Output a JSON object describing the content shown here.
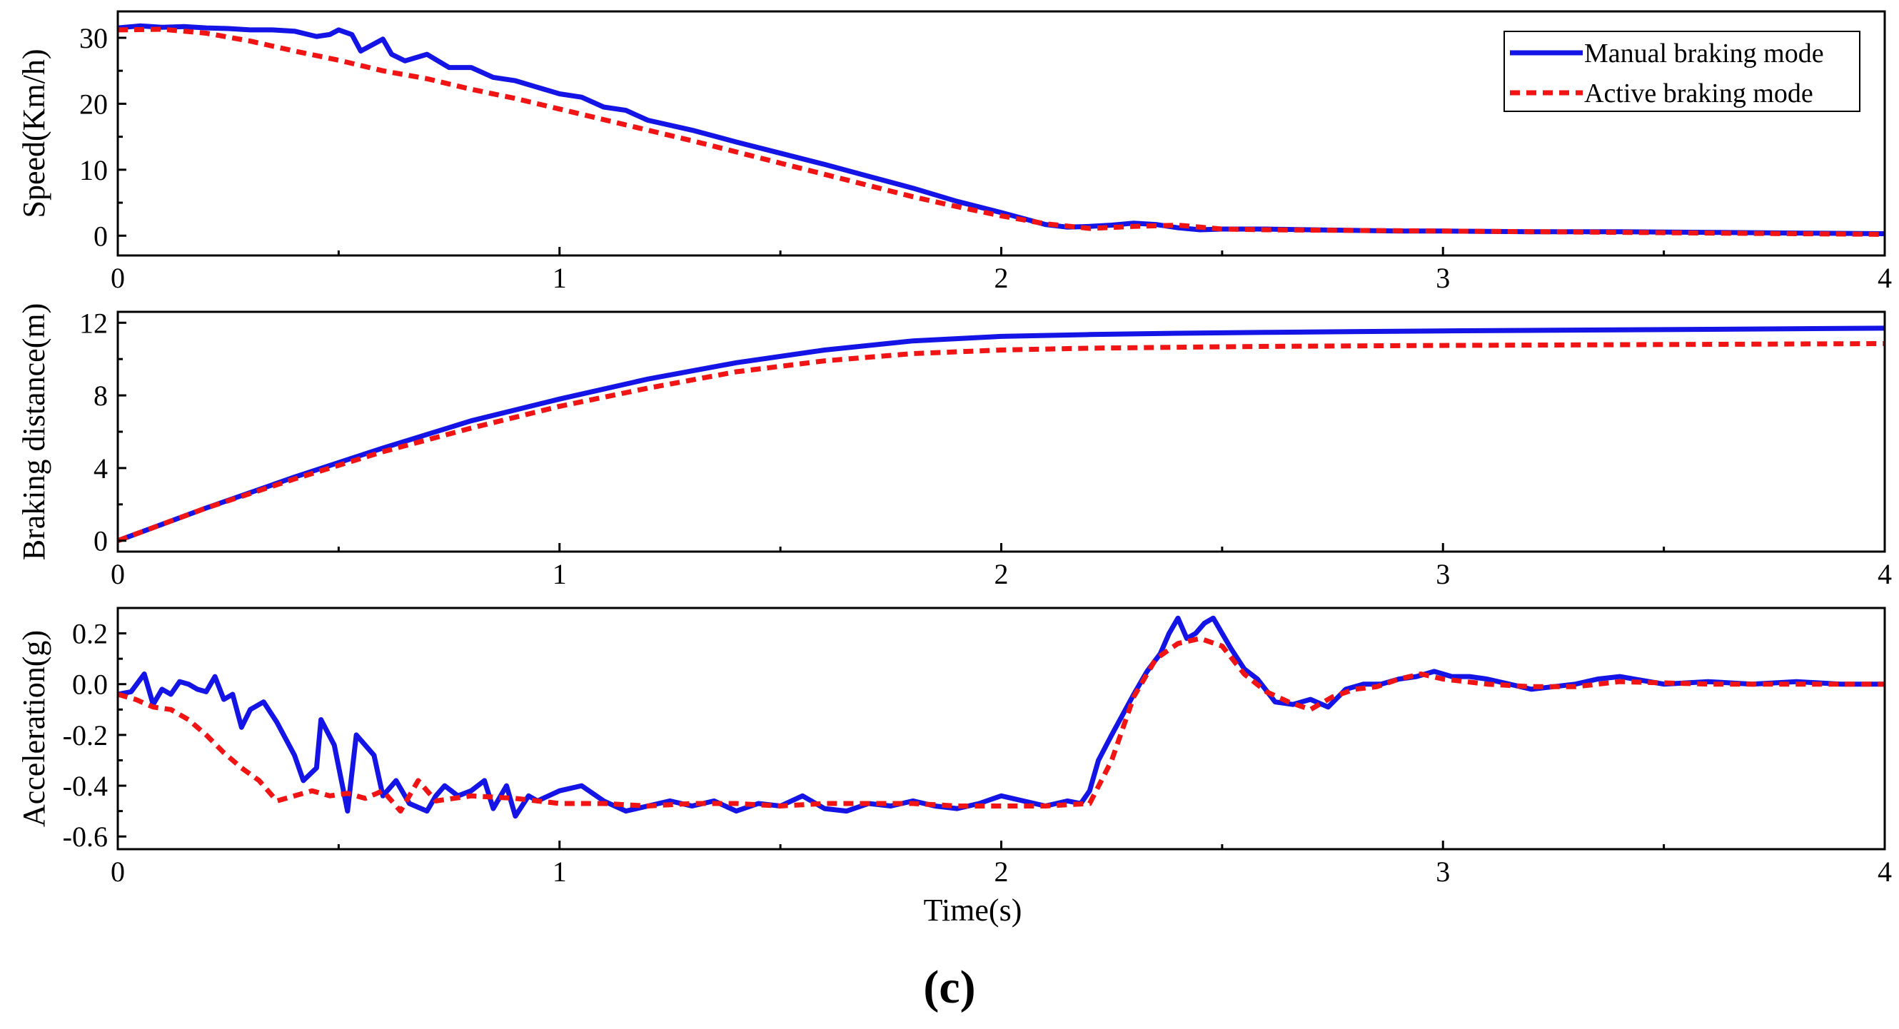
{
  "chart_data": [
    {
      "type": "line",
      "panel": "speed",
      "ylabel": "Speed(Km/h)",
      "xlabel": "",
      "xlim": [
        0,
        4
      ],
      "ylim": [
        -3,
        34
      ],
      "xticks": [
        0,
        1,
        2,
        3,
        4
      ],
      "xtick_labels": [
        "0",
        "1",
        "2",
        "3",
        "4"
      ],
      "yticks": [
        0,
        10,
        20,
        30
      ],
      "ytick_labels": [
        "0",
        "10",
        "20",
        "30"
      ],
      "legend": {
        "position": "top-right",
        "entries": [
          "Manual braking mode",
          "Active braking mode"
        ]
      },
      "series": [
        {
          "name": "Manual braking mode",
          "style": "solid",
          "x": [
            0,
            0.05,
            0.1,
            0.15,
            0.2,
            0.25,
            0.3,
            0.35,
            0.4,
            0.45,
            0.48,
            0.5,
            0.53,
            0.55,
            0.6,
            0.62,
            0.65,
            0.7,
            0.75,
            0.8,
            0.85,
            0.9,
            0.95,
            1.0,
            1.05,
            1.1,
            1.15,
            1.2,
            1.3,
            1.4,
            1.5,
            1.6,
            1.7,
            1.8,
            1.9,
            2.0,
            2.05,
            2.1,
            2.15,
            2.2,
            2.25,
            2.3,
            2.35,
            2.4,
            2.45,
            2.5,
            2.6,
            2.7,
            2.8,
            2.9,
            3.0,
            3.2,
            3.4,
            3.6,
            3.8,
            4.0
          ],
          "values": [
            31.5,
            31.8,
            31.6,
            31.7,
            31.5,
            31.4,
            31.2,
            31.2,
            31.0,
            30.2,
            30.5,
            31.2,
            30.5,
            28.0,
            29.8,
            27.5,
            26.5,
            27.5,
            25.5,
            25.5,
            24.0,
            23.5,
            22.5,
            21.5,
            21.0,
            19.5,
            19.0,
            17.5,
            16.0,
            14.2,
            12.5,
            10.8,
            9.0,
            7.2,
            5.2,
            3.5,
            2.6,
            1.7,
            1.3,
            1.4,
            1.6,
            1.9,
            1.7,
            1.2,
            0.9,
            1.0,
            1.0,
            0.9,
            0.8,
            0.7,
            0.7,
            0.6,
            0.6,
            0.5,
            0.4,
            0.3
          ]
        },
        {
          "name": "Active braking mode",
          "style": "dashed",
          "x": [
            0,
            0.1,
            0.2,
            0.3,
            0.4,
            0.5,
            0.6,
            0.7,
            0.8,
            0.9,
            1.0,
            1.1,
            1.2,
            1.3,
            1.4,
            1.5,
            1.6,
            1.7,
            1.8,
            1.9,
            2.0,
            2.1,
            2.2,
            2.3,
            2.4,
            2.5,
            2.6,
            2.8,
            3.0,
            3.2,
            3.4,
            3.6,
            3.8,
            4.0
          ],
          "values": [
            31.2,
            31.3,
            30.7,
            29.5,
            28.0,
            26.6,
            25.0,
            23.8,
            22.2,
            20.8,
            19.2,
            17.6,
            16.0,
            14.4,
            12.7,
            11.0,
            9.3,
            7.6,
            5.9,
            4.4,
            3.0,
            1.8,
            1.1,
            1.4,
            1.6,
            1.0,
            0.9,
            0.8,
            0.7,
            0.6,
            0.5,
            0.4,
            0.3,
            0.2
          ]
        }
      ]
    },
    {
      "type": "line",
      "panel": "distance",
      "ylabel": "Braking distance(m)",
      "xlabel": "",
      "xlim": [
        0,
        4
      ],
      "ylim": [
        -0.6,
        12.6
      ],
      "xticks": [
        0,
        1,
        2,
        3,
        4
      ],
      "xtick_labels": [
        "0",
        "1",
        "2",
        "3",
        "4"
      ],
      "yticks": [
        0,
        4,
        8,
        12
      ],
      "ytick_labels": [
        "0",
        "4",
        "8",
        "12"
      ],
      "series": [
        {
          "name": "Manual braking mode",
          "style": "solid",
          "x": [
            0,
            0.2,
            0.4,
            0.6,
            0.8,
            1.0,
            1.2,
            1.4,
            1.6,
            1.8,
            2.0,
            2.2,
            2.4,
            2.6,
            3.0,
            3.5,
            4.0
          ],
          "values": [
            0.0,
            1.8,
            3.5,
            5.1,
            6.6,
            7.8,
            8.9,
            9.8,
            10.5,
            11.0,
            11.25,
            11.35,
            11.42,
            11.47,
            11.55,
            11.62,
            11.7
          ]
        },
        {
          "name": "Active braking mode",
          "style": "dashed",
          "x": [
            0,
            0.2,
            0.4,
            0.6,
            0.8,
            1.0,
            1.2,
            1.4,
            1.6,
            1.8,
            2.0,
            2.2,
            2.4,
            2.6,
            3.0,
            3.5,
            4.0
          ],
          "values": [
            0.0,
            1.8,
            3.4,
            4.9,
            6.2,
            7.4,
            8.4,
            9.3,
            9.9,
            10.3,
            10.5,
            10.6,
            10.65,
            10.7,
            10.75,
            10.8,
            10.85
          ]
        }
      ]
    },
    {
      "type": "line",
      "panel": "acceleration",
      "ylabel": "Acceleration(g)",
      "xlabel": "Time(s)",
      "xlim": [
        0,
        4
      ],
      "ylim": [
        -0.65,
        0.3
      ],
      "xticks": [
        0,
        1,
        2,
        3,
        4
      ],
      "xtick_labels": [
        "0",
        "1",
        "2",
        "3",
        "4"
      ],
      "yticks": [
        -0.6,
        -0.4,
        -0.2,
        0.0,
        0.2
      ],
      "ytick_labels": [
        "-0.6",
        "-0.4",
        "-0.2",
        "0.0",
        "0.2"
      ],
      "series": [
        {
          "name": "Manual braking mode",
          "style": "solid",
          "x": [
            0,
            0.03,
            0.06,
            0.08,
            0.1,
            0.12,
            0.14,
            0.16,
            0.18,
            0.2,
            0.22,
            0.24,
            0.26,
            0.28,
            0.3,
            0.33,
            0.36,
            0.4,
            0.42,
            0.45,
            0.46,
            0.49,
            0.52,
            0.54,
            0.58,
            0.6,
            0.63,
            0.66,
            0.7,
            0.72,
            0.74,
            0.77,
            0.8,
            0.83,
            0.85,
            0.88,
            0.9,
            0.93,
            0.95,
            1.0,
            1.05,
            1.1,
            1.15,
            1.2,
            1.25,
            1.3,
            1.35,
            1.4,
            1.45,
            1.5,
            1.55,
            1.6,
            1.65,
            1.7,
            1.75,
            1.8,
            1.85,
            1.9,
            1.95,
            2.0,
            2.05,
            2.1,
            2.15,
            2.18,
            2.2,
            2.22,
            2.25,
            2.3,
            2.33,
            2.36,
            2.38,
            2.4,
            2.42,
            2.44,
            2.46,
            2.48,
            2.5,
            2.52,
            2.55,
            2.58,
            2.62,
            2.66,
            2.7,
            2.74,
            2.78,
            2.82,
            2.86,
            2.9,
            2.94,
            2.98,
            3.02,
            3.06,
            3.1,
            3.15,
            3.2,
            3.25,
            3.3,
            3.35,
            3.4,
            3.5,
            3.6,
            3.7,
            3.8,
            3.9,
            4.0
          ],
          "values": [
            -0.04,
            -0.03,
            0.04,
            -0.08,
            -0.02,
            -0.04,
            0.01,
            0.0,
            -0.02,
            -0.03,
            0.03,
            -0.06,
            -0.04,
            -0.17,
            -0.1,
            -0.07,
            -0.15,
            -0.28,
            -0.38,
            -0.33,
            -0.14,
            -0.24,
            -0.5,
            -0.2,
            -0.28,
            -0.44,
            -0.38,
            -0.47,
            -0.5,
            -0.44,
            -0.4,
            -0.44,
            -0.42,
            -0.38,
            -0.49,
            -0.4,
            -0.52,
            -0.44,
            -0.46,
            -0.42,
            -0.4,
            -0.46,
            -0.5,
            -0.48,
            -0.46,
            -0.48,
            -0.46,
            -0.5,
            -0.47,
            -0.48,
            -0.44,
            -0.49,
            -0.5,
            -0.47,
            -0.48,
            -0.46,
            -0.48,
            -0.49,
            -0.47,
            -0.44,
            -0.46,
            -0.48,
            -0.46,
            -0.47,
            -0.42,
            -0.3,
            -0.2,
            -0.04,
            0.05,
            0.12,
            0.2,
            0.26,
            0.18,
            0.2,
            0.24,
            0.26,
            0.2,
            0.14,
            0.06,
            0.02,
            -0.07,
            -0.08,
            -0.06,
            -0.09,
            -0.02,
            0.0,
            0.0,
            0.02,
            0.03,
            0.05,
            0.03,
            0.03,
            0.02,
            0.0,
            -0.02,
            -0.01,
            0.0,
            0.02,
            0.03,
            0.0,
            0.01,
            0.0,
            0.01,
            0.0,
            0.0
          ]
        },
        {
          "name": "Active braking mode",
          "style": "dashed",
          "x": [
            0,
            0.04,
            0.08,
            0.12,
            0.16,
            0.2,
            0.24,
            0.28,
            0.32,
            0.36,
            0.4,
            0.44,
            0.48,
            0.52,
            0.56,
            0.6,
            0.64,
            0.68,
            0.72,
            0.8,
            0.9,
            1.0,
            1.1,
            1.2,
            1.3,
            1.4,
            1.5,
            1.6,
            1.7,
            1.8,
            1.9,
            2.0,
            2.1,
            2.2,
            2.25,
            2.3,
            2.35,
            2.4,
            2.45,
            2.5,
            2.55,
            2.6,
            2.65,
            2.7,
            2.75,
            2.8,
            2.85,
            2.9,
            2.95,
            3.0,
            3.1,
            3.2,
            3.3,
            3.4,
            3.6,
            3.8,
            4.0
          ],
          "values": [
            -0.04,
            -0.06,
            -0.09,
            -0.1,
            -0.14,
            -0.2,
            -0.27,
            -0.33,
            -0.38,
            -0.46,
            -0.44,
            -0.42,
            -0.44,
            -0.43,
            -0.45,
            -0.42,
            -0.5,
            -0.38,
            -0.46,
            -0.44,
            -0.45,
            -0.47,
            -0.47,
            -0.48,
            -0.47,
            -0.47,
            -0.48,
            -0.47,
            -0.47,
            -0.47,
            -0.48,
            -0.48,
            -0.48,
            -0.47,
            -0.3,
            -0.05,
            0.1,
            0.16,
            0.18,
            0.15,
            0.04,
            -0.03,
            -0.07,
            -0.1,
            -0.05,
            -0.02,
            -0.01,
            0.02,
            0.04,
            0.02,
            0.0,
            -0.01,
            -0.01,
            0.01,
            0.0,
            0.0,
            0.0
          ]
        }
      ]
    }
  ],
  "caption": "(c)",
  "colors": {
    "manual": "#1414e6",
    "active": "#f01414"
  }
}
